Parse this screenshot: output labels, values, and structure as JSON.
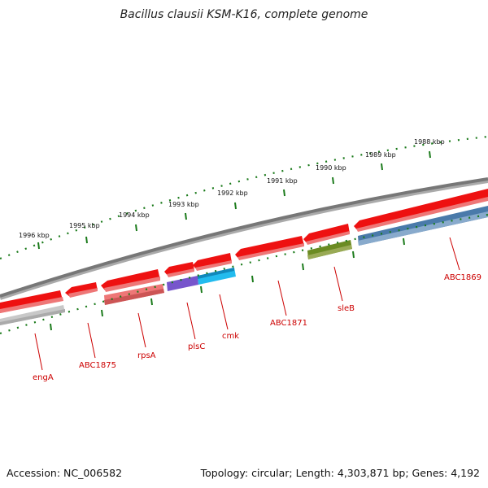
{
  "title": "Bacillus clausii KSM-K16, complete genome",
  "footer": {
    "accession": "Accession: NC_006582",
    "summary": "Topology: circular; Length: 4,303,871 bp; Genes: 4,192"
  },
  "ticks": {
    "labels": [
      "1996 kbp",
      "1995 kbp",
      "1994 kbp",
      "1993 kbp",
      "1992 kbp",
      "1991 kbp",
      "1990 kbp",
      "1989 kbp",
      "1988 kbp"
    ],
    "color": "#1a7a1a"
  },
  "genes": {
    "labels": [
      "engA",
      "ABC1875",
      "rpsA",
      "plsC",
      "cmk",
      "ABC1871",
      "sleB",
      "ABC1869"
    ],
    "label_color": "#cc0000"
  },
  "colors": {
    "backbone": "#777777",
    "red": "#ee1111",
    "pink": "#ee7777",
    "gray": "#c8c8c8",
    "purple": "#7755cc",
    "cyan": "#22bbee",
    "olive": "#6b8b22",
    "steelblue": "#4a7aaa"
  }
}
